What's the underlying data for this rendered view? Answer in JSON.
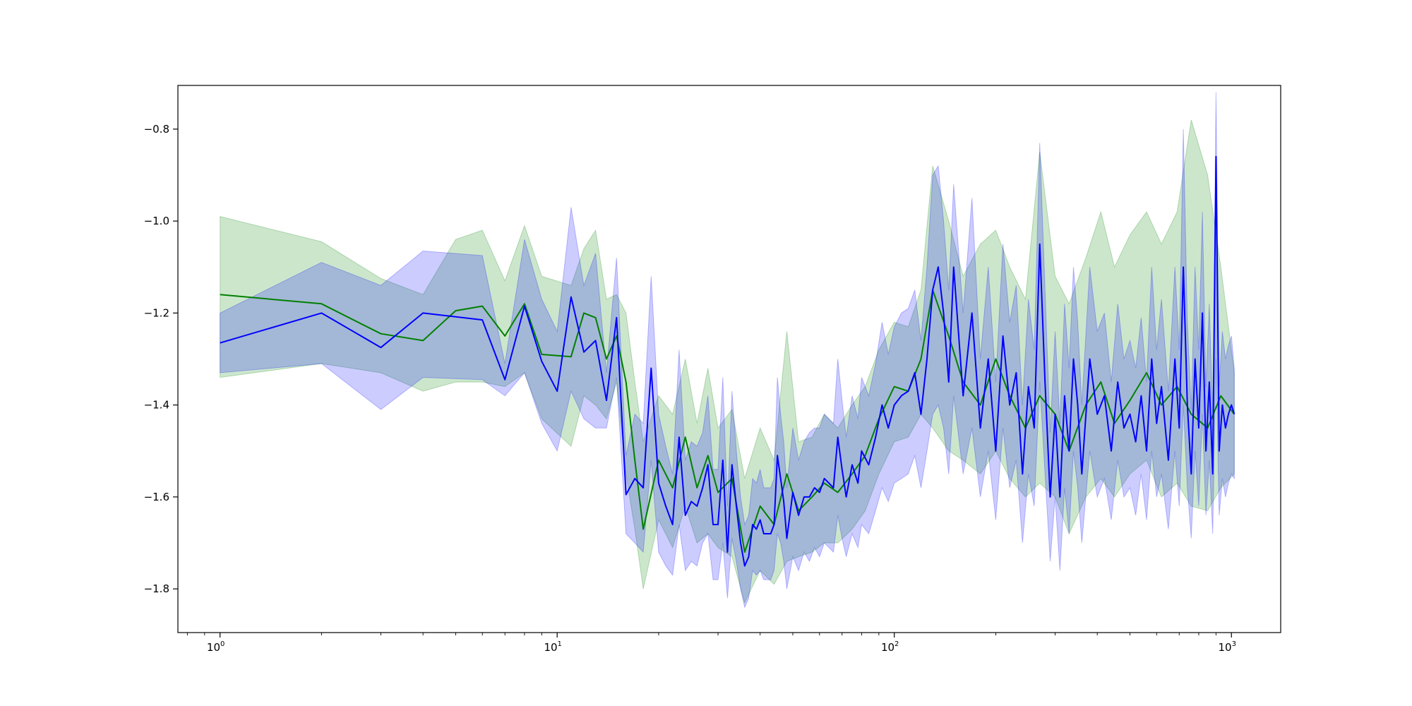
{
  "chart_data": {
    "type": "line",
    "title": "",
    "xlabel": "",
    "ylabel": "",
    "xscale": "log",
    "xlim": [
      0.75,
      1400
    ],
    "ylim": [
      -1.895,
      -0.705
    ],
    "grid": false,
    "x_ticks": [
      {
        "value": 1,
        "base": "10",
        "exp": "0"
      },
      {
        "value": 10,
        "base": "10",
        "exp": "1"
      },
      {
        "value": 100,
        "base": "10",
        "exp": "2"
      },
      {
        "value": 1000,
        "base": "10",
        "exp": "3"
      }
    ],
    "y_ticks": [
      {
        "value": -0.8,
        "label": "−0.8"
      },
      {
        "value": -1.0,
        "label": "−1.0"
      },
      {
        "value": -1.2,
        "label": "−1.2"
      },
      {
        "value": -1.4,
        "label": "−1.4"
      },
      {
        "value": -1.6,
        "label": "−1.6"
      },
      {
        "value": -1.8,
        "label": "−1.8"
      }
    ],
    "series": [
      {
        "color": "#008000",
        "band_color": "#008000",
        "band_opacity": 0.2,
        "x": [
          1,
          2,
          3,
          4,
          5,
          6,
          7,
          8,
          9,
          11,
          12,
          13,
          14,
          15,
          16,
          17,
          18,
          20,
          22,
          24,
          26,
          28,
          30,
          33,
          36,
          40,
          44,
          48,
          52,
          57,
          62,
          68,
          75,
          82,
          90,
          100,
          110,
          120,
          130,
          145,
          160,
          180,
          200,
          220,
          245,
          270,
          300,
          330,
          370,
          410,
          450,
          500,
          560,
          620,
          690,
          760,
          850,
          930,
          1020
        ],
        "values": [
          -1.16,
          -1.18,
          -1.245,
          -1.26,
          -1.195,
          -1.185,
          -1.25,
          -1.18,
          -1.29,
          -1.295,
          -1.2,
          -1.21,
          -1.3,
          -1.25,
          -1.35,
          -1.52,
          -1.67,
          -1.52,
          -1.58,
          -1.47,
          -1.58,
          -1.51,
          -1.59,
          -1.56,
          -1.72,
          -1.62,
          -1.66,
          -1.55,
          -1.63,
          -1.6,
          -1.57,
          -1.59,
          -1.55,
          -1.51,
          -1.43,
          -1.36,
          -1.37,
          -1.3,
          -1.15,
          -1.25,
          -1.35,
          -1.4,
          -1.3,
          -1.38,
          -1.45,
          -1.38,
          -1.42,
          -1.5,
          -1.4,
          -1.35,
          -1.44,
          -1.39,
          -1.33,
          -1.4,
          -1.36,
          -1.42,
          -1.45,
          -1.38,
          -1.42
        ],
        "lower": [
          -1.34,
          -1.31,
          -1.33,
          -1.37,
          -1.35,
          -1.35,
          -1.36,
          -1.33,
          -1.43,
          -1.49,
          -1.38,
          -1.4,
          -1.43,
          -1.35,
          -1.55,
          -1.67,
          -1.8,
          -1.65,
          -1.71,
          -1.62,
          -1.7,
          -1.68,
          -1.71,
          -1.73,
          -1.83,
          -1.76,
          -1.79,
          -1.74,
          -1.73,
          -1.72,
          -1.7,
          -1.7,
          -1.67,
          -1.63,
          -1.55,
          -1.48,
          -1.47,
          -1.42,
          -1.45,
          -1.5,
          -1.52,
          -1.55,
          -1.5,
          -1.56,
          -1.6,
          -1.57,
          -1.6,
          -1.68,
          -1.6,
          -1.56,
          -1.6,
          -1.55,
          -1.52,
          -1.6,
          -1.57,
          -1.62,
          -1.63,
          -1.58,
          -1.55
        ],
        "upper": [
          -0.99,
          -1.045,
          -1.125,
          -1.16,
          -1.04,
          -1.02,
          -1.13,
          -1.01,
          -1.12,
          -1.14,
          -1.06,
          -1.02,
          -1.17,
          -1.16,
          -1.2,
          -1.35,
          -1.48,
          -1.38,
          -1.42,
          -1.3,
          -1.44,
          -1.32,
          -1.45,
          -1.41,
          -1.56,
          -1.45,
          -1.52,
          -1.24,
          -1.48,
          -1.47,
          -1.42,
          -1.45,
          -1.4,
          -1.36,
          -1.28,
          -1.22,
          -1.23,
          -1.15,
          -0.88,
          -1.0,
          -1.12,
          -1.05,
          -1.02,
          -1.1,
          -1.17,
          -0.85,
          -1.12,
          -1.18,
          -1.08,
          -0.98,
          -1.1,
          -1.03,
          -0.98,
          -1.05,
          -0.98,
          -0.78,
          -0.9,
          -1.1,
          -1.33
        ]
      },
      {
        "color": "#0000ff",
        "band_color": "#0000ff",
        "band_opacity": 0.2,
        "x": [
          1,
          2,
          3,
          4,
          6,
          7,
          8,
          9,
          10,
          11,
          12,
          13,
          14,
          15,
          16,
          17,
          18,
          19,
          20,
          21,
          22,
          23,
          24,
          25,
          26,
          27,
          28,
          29,
          30,
          31,
          32,
          33,
          34,
          35,
          36,
          37,
          38,
          39,
          40,
          41,
          42,
          43,
          44,
          45,
          46,
          47,
          48,
          50,
          52,
          54,
          56,
          58,
          60,
          62,
          64,
          66,
          68,
          70,
          72,
          75,
          78,
          80,
          84,
          88,
          92,
          96,
          100,
          105,
          110,
          115,
          120,
          125,
          130,
          135,
          140,
          145,
          150,
          160,
          170,
          180,
          190,
          200,
          210,
          220,
          230,
          240,
          250,
          260,
          270,
          280,
          290,
          300,
          310,
          320,
          330,
          340,
          350,
          360,
          380,
          400,
          420,
          440,
          460,
          480,
          500,
          520,
          540,
          560,
          580,
          600,
          620,
          650,
          680,
          700,
          720,
          740,
          760,
          780,
          800,
          820,
          840,
          860,
          880,
          900,
          920,
          940,
          960,
          980,
          1000,
          1020
        ],
        "values": [
          -1.265,
          -1.2,
          -1.275,
          -1.2,
          -1.215,
          -1.345,
          -1.185,
          -1.305,
          -1.37,
          -1.165,
          -1.285,
          -1.26,
          -1.39,
          -1.21,
          -1.595,
          -1.56,
          -1.58,
          -1.32,
          -1.57,
          -1.62,
          -1.66,
          -1.47,
          -1.64,
          -1.61,
          -1.62,
          -1.58,
          -1.53,
          -1.66,
          -1.66,
          -1.52,
          -1.72,
          -1.53,
          -1.62,
          -1.7,
          -1.75,
          -1.73,
          -1.66,
          -1.67,
          -1.65,
          -1.68,
          -1.68,
          -1.68,
          -1.66,
          -1.51,
          -1.56,
          -1.61,
          -1.69,
          -1.59,
          -1.64,
          -1.6,
          -1.6,
          -1.58,
          -1.59,
          -1.56,
          -1.57,
          -1.58,
          -1.47,
          -1.54,
          -1.6,
          -1.53,
          -1.57,
          -1.5,
          -1.53,
          -1.47,
          -1.4,
          -1.45,
          -1.4,
          -1.38,
          -1.37,
          -1.33,
          -1.42,
          -1.3,
          -1.15,
          -1.1,
          -1.2,
          -1.35,
          -1.1,
          -1.38,
          -1.2,
          -1.45,
          -1.3,
          -1.5,
          -1.25,
          -1.4,
          -1.33,
          -1.55,
          -1.36,
          -1.45,
          -1.05,
          -1.35,
          -1.6,
          -1.42,
          -1.6,
          -1.38,
          -1.5,
          -1.3,
          -1.4,
          -1.55,
          -1.3,
          -1.42,
          -1.38,
          -1.5,
          -1.35,
          -1.45,
          -1.42,
          -1.48,
          -1.38,
          -1.5,
          -1.3,
          -1.44,
          -1.36,
          -1.52,
          -1.3,
          -1.45,
          -1.1,
          -1.4,
          -1.55,
          -1.3,
          -1.45,
          -1.2,
          -1.5,
          -1.35,
          -1.55,
          -0.86,
          -1.5,
          -1.4,
          -1.45,
          -1.42,
          -1.4,
          -1.42
        ],
        "lower": [
          -1.33,
          -1.31,
          -1.41,
          -1.34,
          -1.345,
          -1.38,
          -1.33,
          -1.44,
          -1.5,
          -1.37,
          -1.43,
          -1.45,
          -1.45,
          -1.34,
          -1.68,
          -1.7,
          -1.72,
          -1.52,
          -1.72,
          -1.75,
          -1.77,
          -1.66,
          -1.76,
          -1.74,
          -1.75,
          -1.7,
          -1.68,
          -1.78,
          -1.78,
          -1.7,
          -1.82,
          -1.69,
          -1.74,
          -1.8,
          -1.84,
          -1.82,
          -1.76,
          -1.77,
          -1.76,
          -1.78,
          -1.78,
          -1.78,
          -1.76,
          -1.68,
          -1.7,
          -1.74,
          -1.8,
          -1.73,
          -1.76,
          -1.72,
          -1.74,
          -1.71,
          -1.73,
          -1.7,
          -1.71,
          -1.72,
          -1.64,
          -1.69,
          -1.73,
          -1.68,
          -1.71,
          -1.66,
          -1.68,
          -1.63,
          -1.58,
          -1.61,
          -1.57,
          -1.56,
          -1.55,
          -1.51,
          -1.58,
          -1.5,
          -1.42,
          -1.4,
          -1.45,
          -1.55,
          -1.38,
          -1.55,
          -1.45,
          -1.6,
          -1.5,
          -1.65,
          -1.45,
          -1.58,
          -1.52,
          -1.7,
          -1.55,
          -1.62,
          -1.35,
          -1.55,
          -1.74,
          -1.6,
          -1.76,
          -1.58,
          -1.68,
          -1.5,
          -1.58,
          -1.7,
          -1.5,
          -1.6,
          -1.56,
          -1.65,
          -1.52,
          -1.6,
          -1.58,
          -1.64,
          -1.55,
          -1.65,
          -1.5,
          -1.6,
          -1.55,
          -1.67,
          -1.5,
          -1.62,
          -1.4,
          -1.58,
          -1.69,
          -1.5,
          -1.62,
          -1.42,
          -1.64,
          -1.52,
          -1.68,
          -1.3,
          -1.64,
          -1.56,
          -1.6,
          -1.57,
          -1.55,
          -1.56
        ],
        "upper": [
          -1.2,
          -1.09,
          -1.14,
          -1.065,
          -1.075,
          -1.31,
          -1.04,
          -1.17,
          -1.24,
          -0.97,
          -1.14,
          -1.07,
          -1.33,
          -1.08,
          -1.51,
          -1.42,
          -1.44,
          -1.12,
          -1.42,
          -1.49,
          -1.55,
          -1.28,
          -1.52,
          -1.48,
          -1.49,
          -1.46,
          -1.38,
          -1.54,
          -1.54,
          -1.34,
          -1.62,
          -1.37,
          -1.5,
          -1.6,
          -1.66,
          -1.64,
          -1.56,
          -1.57,
          -1.54,
          -1.58,
          -1.58,
          -1.58,
          -1.56,
          -1.34,
          -1.42,
          -1.48,
          -1.58,
          -1.45,
          -1.52,
          -1.48,
          -1.46,
          -1.45,
          -1.45,
          -1.42,
          -1.43,
          -1.44,
          -1.3,
          -1.39,
          -1.47,
          -1.38,
          -1.43,
          -1.34,
          -1.38,
          -1.31,
          -1.22,
          -1.29,
          -1.23,
          -1.2,
          -1.19,
          -1.15,
          -1.26,
          -1.1,
          -0.9,
          -0.88,
          -1.0,
          -1.15,
          -0.92,
          -1.2,
          -0.95,
          -1.3,
          -1.1,
          -1.35,
          -1.05,
          -1.22,
          -1.14,
          -1.4,
          -1.17,
          -1.28,
          -0.83,
          -1.15,
          -1.46,
          -1.24,
          -1.44,
          -1.18,
          -1.32,
          -1.1,
          -1.22,
          -1.4,
          -1.1,
          -1.24,
          -1.2,
          -1.35,
          -1.18,
          -1.3,
          -1.26,
          -1.32,
          -1.21,
          -1.35,
          -1.1,
          -1.28,
          -1.17,
          -1.37,
          -1.1,
          -1.28,
          -0.8,
          -1.22,
          -1.41,
          -1.1,
          -1.28,
          -0.98,
          -1.36,
          -1.18,
          -1.42,
          -0.72,
          -1.36,
          -1.24,
          -1.3,
          -1.27,
          -1.25,
          -1.32
        ]
      }
    ]
  }
}
